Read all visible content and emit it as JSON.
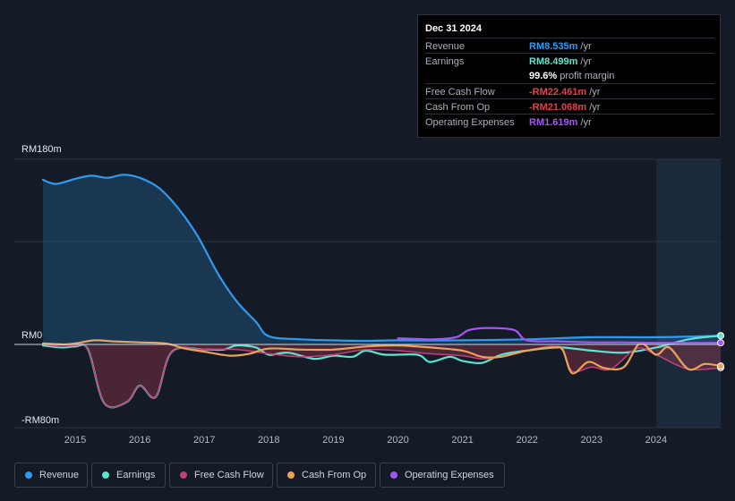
{
  "tooltip": {
    "date": "Dec 31 2024",
    "rows": [
      {
        "label": "Revenue",
        "value": "RM8.535m",
        "unit": "/yr",
        "color": "#2f9bf0"
      },
      {
        "label": "Earnings",
        "value": "RM8.499m",
        "unit": "/yr",
        "color": "#5ee3d0"
      },
      {
        "label": "",
        "value": "99.6%",
        "unit": "profit margin",
        "color": "#ffffff"
      },
      {
        "label": "Free Cash Flow",
        "value": "-RM22.461m",
        "unit": "/yr",
        "color": "#e0404a"
      },
      {
        "label": "Cash From Op",
        "value": "-RM21.068m",
        "unit": "/yr",
        "color": "#e0404a"
      },
      {
        "label": "Operating Expenses",
        "value": "RM1.619m",
        "unit": "/yr",
        "color": "#a457f0"
      }
    ]
  },
  "legend": [
    {
      "label": "Revenue",
      "color": "#2f9bf0"
    },
    {
      "label": "Earnings",
      "color": "#5ee3d0"
    },
    {
      "label": "Free Cash Flow",
      "color": "#c2407a"
    },
    {
      "label": "Cash From Op",
      "color": "#e8a25a"
    },
    {
      "label": "Operating Expenses",
      "color": "#a457f0"
    }
  ],
  "chart_data": {
    "type": "line",
    "title": "",
    "ylabel": "",
    "xlabel": "",
    "ylim": [
      -80,
      180
    ],
    "xlim": [
      2014.5,
      2025.0
    ],
    "highlight_from": 2024.0,
    "y_tick_labels": [
      {
        "value": 180,
        "label": "RM180m"
      },
      {
        "value": 0,
        "label": "RM0"
      },
      {
        "value": -80,
        "label": "-RM80m"
      }
    ],
    "x_ticks": [
      2015,
      2016,
      2017,
      2018,
      2019,
      2020,
      2021,
      2022,
      2023,
      2024
    ],
    "x_tick_labels": [
      "2015",
      "2016",
      "2017",
      "2018",
      "2019",
      "2020",
      "2021",
      "2022",
      "2023",
      "2024"
    ],
    "series": [
      {
        "name": "Revenue",
        "color": "#2f9bf0",
        "fill": true,
        "points": [
          [
            2014.5,
            160
          ],
          [
            2014.7,
            156
          ],
          [
            2015.0,
            161
          ],
          [
            2015.25,
            164
          ],
          [
            2015.5,
            162
          ],
          [
            2015.75,
            165
          ],
          [
            2016.0,
            162
          ],
          [
            2016.3,
            152
          ],
          [
            2016.6,
            132
          ],
          [
            2016.9,
            105
          ],
          [
            2017.2,
            70
          ],
          [
            2017.5,
            42
          ],
          [
            2017.8,
            22
          ],
          [
            2018.0,
            8
          ],
          [
            2018.5,
            5
          ],
          [
            2019.0,
            4
          ],
          [
            2019.5,
            3.5
          ],
          [
            2020.0,
            4
          ],
          [
            2021.0,
            4
          ],
          [
            2022.0,
            5
          ],
          [
            2023.0,
            7
          ],
          [
            2024.0,
            7
          ],
          [
            2025.0,
            8.5
          ]
        ]
      },
      {
        "name": "Earnings",
        "color": "#5ee3d0",
        "fill": false,
        "points": [
          [
            2014.5,
            -1
          ],
          [
            2014.8,
            -3
          ],
          [
            2015.0,
            -2
          ],
          [
            2015.2,
            -5
          ],
          [
            2015.45,
            -57
          ],
          [
            2015.8,
            -56
          ],
          [
            2016.0,
            -40
          ],
          [
            2016.25,
            -51
          ],
          [
            2016.5,
            -7
          ],
          [
            2017.0,
            -5
          ],
          [
            2017.3,
            -5
          ],
          [
            2017.5,
            -1
          ],
          [
            2017.8,
            -3
          ],
          [
            2018.0,
            -10
          ],
          [
            2018.3,
            -8
          ],
          [
            2018.7,
            -14
          ],
          [
            2019.0,
            -11
          ],
          [
            2019.3,
            -12
          ],
          [
            2019.5,
            -6
          ],
          [
            2019.8,
            -10
          ],
          [
            2020.3,
            -10
          ],
          [
            2020.5,
            -17
          ],
          [
            2020.8,
            -12
          ],
          [
            2021.0,
            -16
          ],
          [
            2021.3,
            -18
          ],
          [
            2021.6,
            -10
          ],
          [
            2022.0,
            -6
          ],
          [
            2022.5,
            -3
          ],
          [
            2023.0,
            -6
          ],
          [
            2023.5,
            -8
          ],
          [
            2024.0,
            -3
          ],
          [
            2024.5,
            5
          ],
          [
            2025.0,
            8.5
          ]
        ]
      },
      {
        "name": "Free Cash Flow",
        "color": "#c2407a",
        "fill": true,
        "points": [
          [
            2014.5,
            0
          ],
          [
            2014.8,
            -2
          ],
          [
            2015.0,
            -1
          ],
          [
            2015.2,
            -5
          ],
          [
            2015.45,
            -57
          ],
          [
            2015.8,
            -56
          ],
          [
            2016.0,
            -40
          ],
          [
            2016.25,
            -51
          ],
          [
            2016.5,
            -7
          ],
          [
            2017.0,
            -5
          ],
          [
            2017.5,
            -5
          ],
          [
            2018.0,
            -9
          ],
          [
            2018.5,
            -12
          ],
          [
            2019.0,
            -10
          ],
          [
            2019.5,
            -5
          ],
          [
            2020.0,
            -6
          ],
          [
            2020.5,
            -9
          ],
          [
            2021.0,
            -11
          ],
          [
            2021.3,
            -14
          ],
          [
            2021.6,
            -12
          ],
          [
            2022.0,
            -6
          ],
          [
            2022.5,
            -3
          ],
          [
            2022.7,
            -26
          ],
          [
            2023.0,
            -22
          ],
          [
            2023.3,
            -24
          ],
          [
            2023.7,
            -4
          ],
          [
            2024.0,
            -10
          ],
          [
            2024.5,
            -24
          ],
          [
            2025.0,
            -22.5
          ]
        ]
      },
      {
        "name": "Cash From Op",
        "color": "#e8a25a",
        "fill": false,
        "points": [
          [
            2014.5,
            1
          ],
          [
            2014.8,
            0
          ],
          [
            2015.0,
            1
          ],
          [
            2015.3,
            4
          ],
          [
            2015.6,
            3
          ],
          [
            2016.0,
            2
          ],
          [
            2016.4,
            1
          ],
          [
            2016.7,
            -4
          ],
          [
            2017.0,
            -7
          ],
          [
            2017.4,
            -11
          ],
          [
            2017.7,
            -9
          ],
          [
            2018.0,
            -4
          ],
          [
            2018.5,
            -5
          ],
          [
            2019.0,
            -5
          ],
          [
            2019.5,
            -2
          ],
          [
            2020.0,
            -1
          ],
          [
            2020.5,
            -3
          ],
          [
            2021.0,
            -6
          ],
          [
            2021.3,
            -12
          ],
          [
            2021.6,
            -12
          ],
          [
            2022.0,
            -6
          ],
          [
            2022.4,
            -3
          ],
          [
            2022.55,
            -5
          ],
          [
            2022.7,
            -28
          ],
          [
            2022.95,
            -17
          ],
          [
            2023.2,
            -23
          ],
          [
            2023.5,
            -22
          ],
          [
            2023.75,
            1
          ],
          [
            2024.0,
            -10
          ],
          [
            2024.2,
            -3
          ],
          [
            2024.5,
            -24
          ],
          [
            2024.75,
            -19
          ],
          [
            2025.0,
            -21
          ]
        ]
      },
      {
        "name": "Operating Expenses",
        "color": "#a457f0",
        "fill": false,
        "points": [
          [
            2020.0,
            6
          ],
          [
            2020.5,
            5
          ],
          [
            2020.9,
            7
          ],
          [
            2021.1,
            14
          ],
          [
            2021.4,
            16
          ],
          [
            2021.8,
            14
          ],
          [
            2022.0,
            4
          ],
          [
            2022.5,
            3
          ],
          [
            2023.0,
            2
          ],
          [
            2023.5,
            2
          ],
          [
            2024.0,
            1.6
          ],
          [
            2025.0,
            1.6
          ]
        ]
      }
    ]
  }
}
